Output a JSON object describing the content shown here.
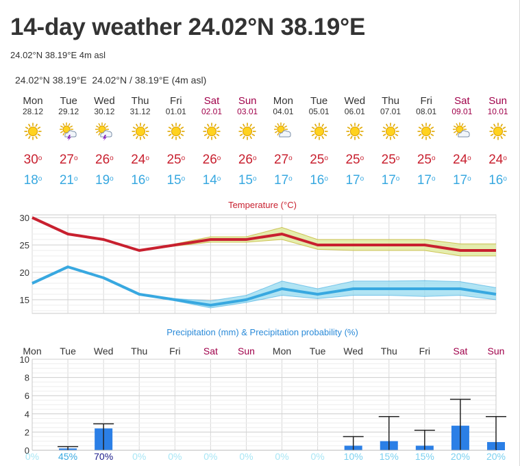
{
  "page": {
    "title": "14-day weather 24.02°N 38.19°E",
    "subtitle": "24.02°N 38.19°E 4m asl",
    "location_label": "24.02°N 38.19°E",
    "location_coords": "24.02°N / 38.19°E",
    "location_elev": "(4m asl)"
  },
  "colors": {
    "max_temp": "#c8202f",
    "min_temp": "#38a8e0",
    "weekend": "#a0004a",
    "precip_bar": "#2b7fe6",
    "precip_title": "#2a8ad8",
    "max_band": "#dfe89a",
    "min_band": "#8fd8f0"
  },
  "days": [
    {
      "name": "Mon",
      "date": "28.12",
      "weekend": false,
      "icon": "sun-icon",
      "max": "30",
      "min": "18"
    },
    {
      "name": "Tue",
      "date": "29.12",
      "weekend": false,
      "icon": "sun-cloud-thunder-icon",
      "max": "27",
      "min": "21"
    },
    {
      "name": "Wed",
      "date": "30.12",
      "weekend": false,
      "icon": "sun-cloud-thunder-icon",
      "max": "26",
      "min": "19"
    },
    {
      "name": "Thu",
      "date": "31.12",
      "weekend": false,
      "icon": "sun-icon",
      "max": "24",
      "min": "16"
    },
    {
      "name": "Fri",
      "date": "01.01",
      "weekend": false,
      "icon": "sun-icon",
      "max": "25",
      "min": "15"
    },
    {
      "name": "Sat",
      "date": "02.01",
      "weekend": true,
      "icon": "sun-icon",
      "max": "26",
      "min": "14"
    },
    {
      "name": "Sun",
      "date": "03.01",
      "weekend": true,
      "icon": "sun-icon",
      "max": "26",
      "min": "15"
    },
    {
      "name": "Mon",
      "date": "04.01",
      "weekend": false,
      "icon": "sun-cloud-icon",
      "max": "27",
      "min": "17"
    },
    {
      "name": "Tue",
      "date": "05.01",
      "weekend": false,
      "icon": "sun-icon",
      "max": "25",
      "min": "16"
    },
    {
      "name": "Wed",
      "date": "06.01",
      "weekend": false,
      "icon": "sun-icon",
      "max": "25",
      "min": "17"
    },
    {
      "name": "Thu",
      "date": "07.01",
      "weekend": false,
      "icon": "sun-icon",
      "max": "25",
      "min": "17"
    },
    {
      "name": "Fri",
      "date": "08.01",
      "weekend": false,
      "icon": "sun-icon",
      "max": "25",
      "min": "17"
    },
    {
      "name": "Sat",
      "date": "09.01",
      "weekend": true,
      "icon": "sun-cloud-icon",
      "max": "24",
      "min": "17"
    },
    {
      "name": "Sun",
      "date": "10.01",
      "weekend": true,
      "icon": "sun-icon",
      "max": "24",
      "min": "16"
    }
  ],
  "chart_data": [
    {
      "type": "line",
      "title": "Temperature (°C)",
      "x": [
        "Mon",
        "Tue",
        "Wed",
        "Thu",
        "Fri",
        "Sat",
        "Sun",
        "Mon",
        "Tue",
        "Wed",
        "Thu",
        "Fri",
        "Sat",
        "Sun"
      ],
      "yticks": [
        15,
        20,
        25,
        30
      ],
      "ylim": [
        12.5,
        30.5
      ],
      "grid": true,
      "series": [
        {
          "name": "max",
          "color": "#c8202f",
          "values": [
            30,
            27,
            26,
            24,
            25,
            26,
            26,
            27,
            25,
            25,
            25,
            25,
            24,
            24
          ],
          "band_low": [
            30,
            27,
            26,
            24,
            24.8,
            25.5,
            25.5,
            26,
            24.2,
            24,
            24,
            24,
            23,
            23
          ],
          "band_high": [
            30,
            27,
            26,
            24,
            25.2,
            26.5,
            26.5,
            28.2,
            26,
            26,
            26,
            26,
            25.2,
            25.2
          ]
        },
        {
          "name": "min",
          "color": "#38a8e0",
          "values": [
            18,
            21,
            19,
            16,
            15,
            14,
            15,
            17,
            16,
            17,
            17,
            17,
            17,
            16
          ],
          "band_low": [
            17.8,
            21,
            19,
            16,
            14.8,
            13.5,
            14.5,
            15.8,
            15.2,
            15.8,
            15.8,
            15.6,
            15.8,
            15
          ],
          "band_high": [
            18.2,
            21,
            19,
            16,
            15.2,
            14.8,
            15.8,
            18.4,
            17,
            18.4,
            18.4,
            18.5,
            18.3,
            17.2
          ]
        }
      ]
    },
    {
      "type": "bar",
      "title": "Precipitation (mm) & Precipitation probability (%)",
      "categories": [
        "Mon",
        "Tue",
        "Wed",
        "Thu",
        "Fri",
        "Sat",
        "Sun",
        "Mon",
        "Tue",
        "Wed",
        "Thu",
        "Fri",
        "Sat",
        "Sun"
      ],
      "weekend": [
        false,
        false,
        false,
        false,
        false,
        true,
        true,
        false,
        false,
        false,
        false,
        false,
        true,
        true
      ],
      "values": [
        0,
        0.2,
        2.4,
        0,
        0,
        0,
        0,
        0,
        0,
        0.5,
        1,
        0.5,
        2.7,
        0.9
      ],
      "range_high": [
        0,
        0.4,
        2.9,
        0,
        0,
        0,
        0,
        0,
        0,
        1.5,
        3.7,
        2.2,
        5.6,
        3.7
      ],
      "probability": [
        "0%",
        "45%",
        "70%",
        "0%",
        "0%",
        "0%",
        "0%",
        "0%",
        "0%",
        "10%",
        "15%",
        "15%",
        "20%",
        "20%"
      ],
      "probability_colors": [
        "#a8e6f5",
        "#38a8e0",
        "#1a1a8a",
        "#a8e6f5",
        "#a8e6f5",
        "#a8e6f5",
        "#a8e6f5",
        "#a8e6f5",
        "#a8e6f5",
        "#7ad0f0",
        "#7ad0f0",
        "#7ad0f0",
        "#7ad0f0",
        "#7ad0f0"
      ],
      "yticks": [
        0,
        2,
        4,
        6,
        8,
        10
      ],
      "ylim": [
        0,
        10
      ],
      "grid": true
    }
  ]
}
